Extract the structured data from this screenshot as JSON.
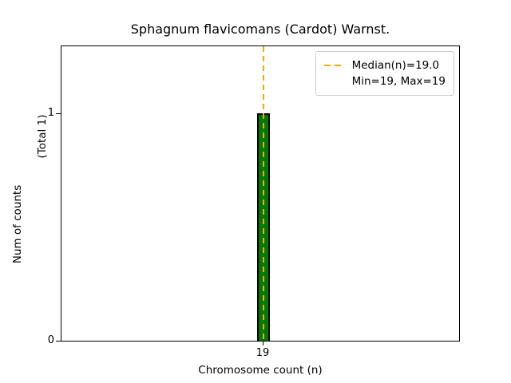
{
  "chart_data": {
    "type": "bar",
    "title": "Sphagnum flavicomans (Cardot) Warnst.",
    "xlabel": "Chromosome count (n)",
    "ylabel": "Num of counts      (Total 1)",
    "ylabel_parts": {
      "main": "Num of counts",
      "total": "(Total 1)"
    },
    "categories": [
      "19"
    ],
    "values": [
      1
    ],
    "total_counts": 1,
    "xticks": [
      "19"
    ],
    "yticks": [
      "0",
      "1"
    ],
    "ylim": [
      0,
      1.3
    ],
    "grid": false,
    "legend_position": "upper right",
    "bar_color_hex": "#007a00",
    "bar_edge_color_hex": "#000000",
    "median": {
      "value": 19.0,
      "line_color_hex": "#FFA500",
      "line_style": "dashed"
    },
    "min": 19,
    "max": 19,
    "legend": {
      "entries": [
        {
          "sample": "orange-dashed-line",
          "label": "Median(n)=19.0"
        },
        {
          "sample": "none",
          "label": "Min=19, Max=19"
        }
      ]
    }
  }
}
